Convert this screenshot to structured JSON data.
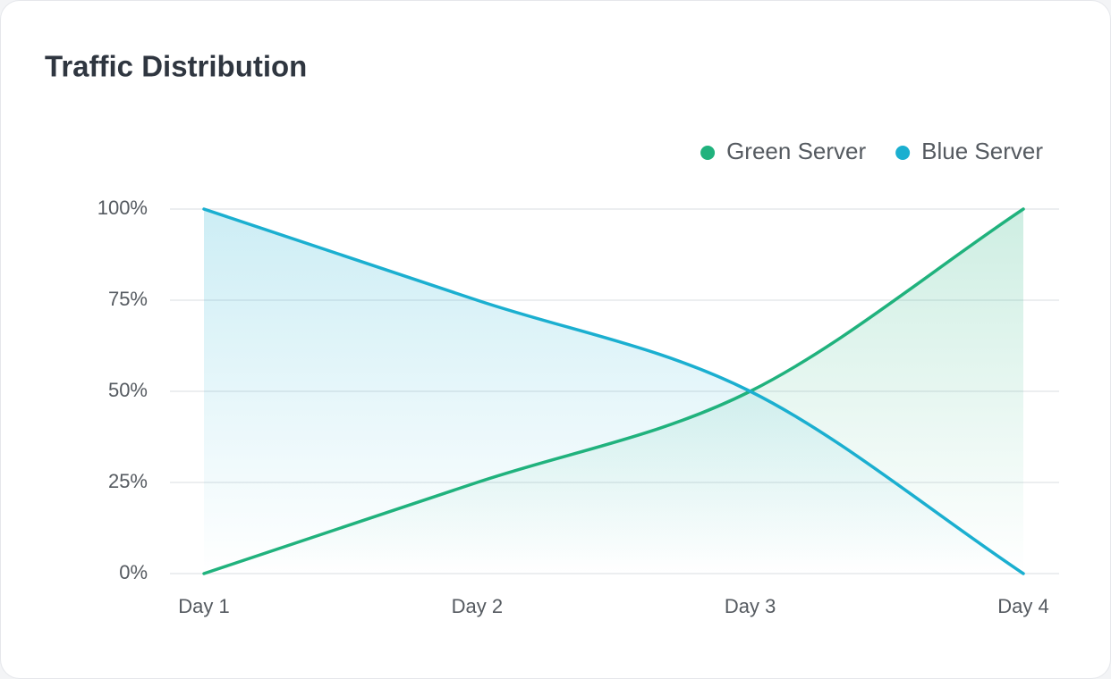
{
  "chart_data": {
    "type": "area",
    "title": "Traffic Distribution",
    "categories": [
      "Day 1",
      "Day 2",
      "Day 3",
      "Day 4"
    ],
    "series": [
      {
        "name": "Green Server",
        "color": "#20b27d",
        "values": [
          0,
          25,
          50,
          100
        ]
      },
      {
        "name": "Blue Server",
        "color": "#1bafd0",
        "values": [
          100,
          75,
          50,
          0
        ]
      }
    ],
    "ylim": [
      0,
      100
    ],
    "yticks": [
      {
        "value": 0,
        "label": "0%"
      },
      {
        "value": 25,
        "label": "25%"
      },
      {
        "value": 50,
        "label": "50%"
      },
      {
        "value": 75,
        "label": "75%"
      },
      {
        "value": 100,
        "label": "100%"
      }
    ],
    "grid": true,
    "legend": "top-right"
  }
}
